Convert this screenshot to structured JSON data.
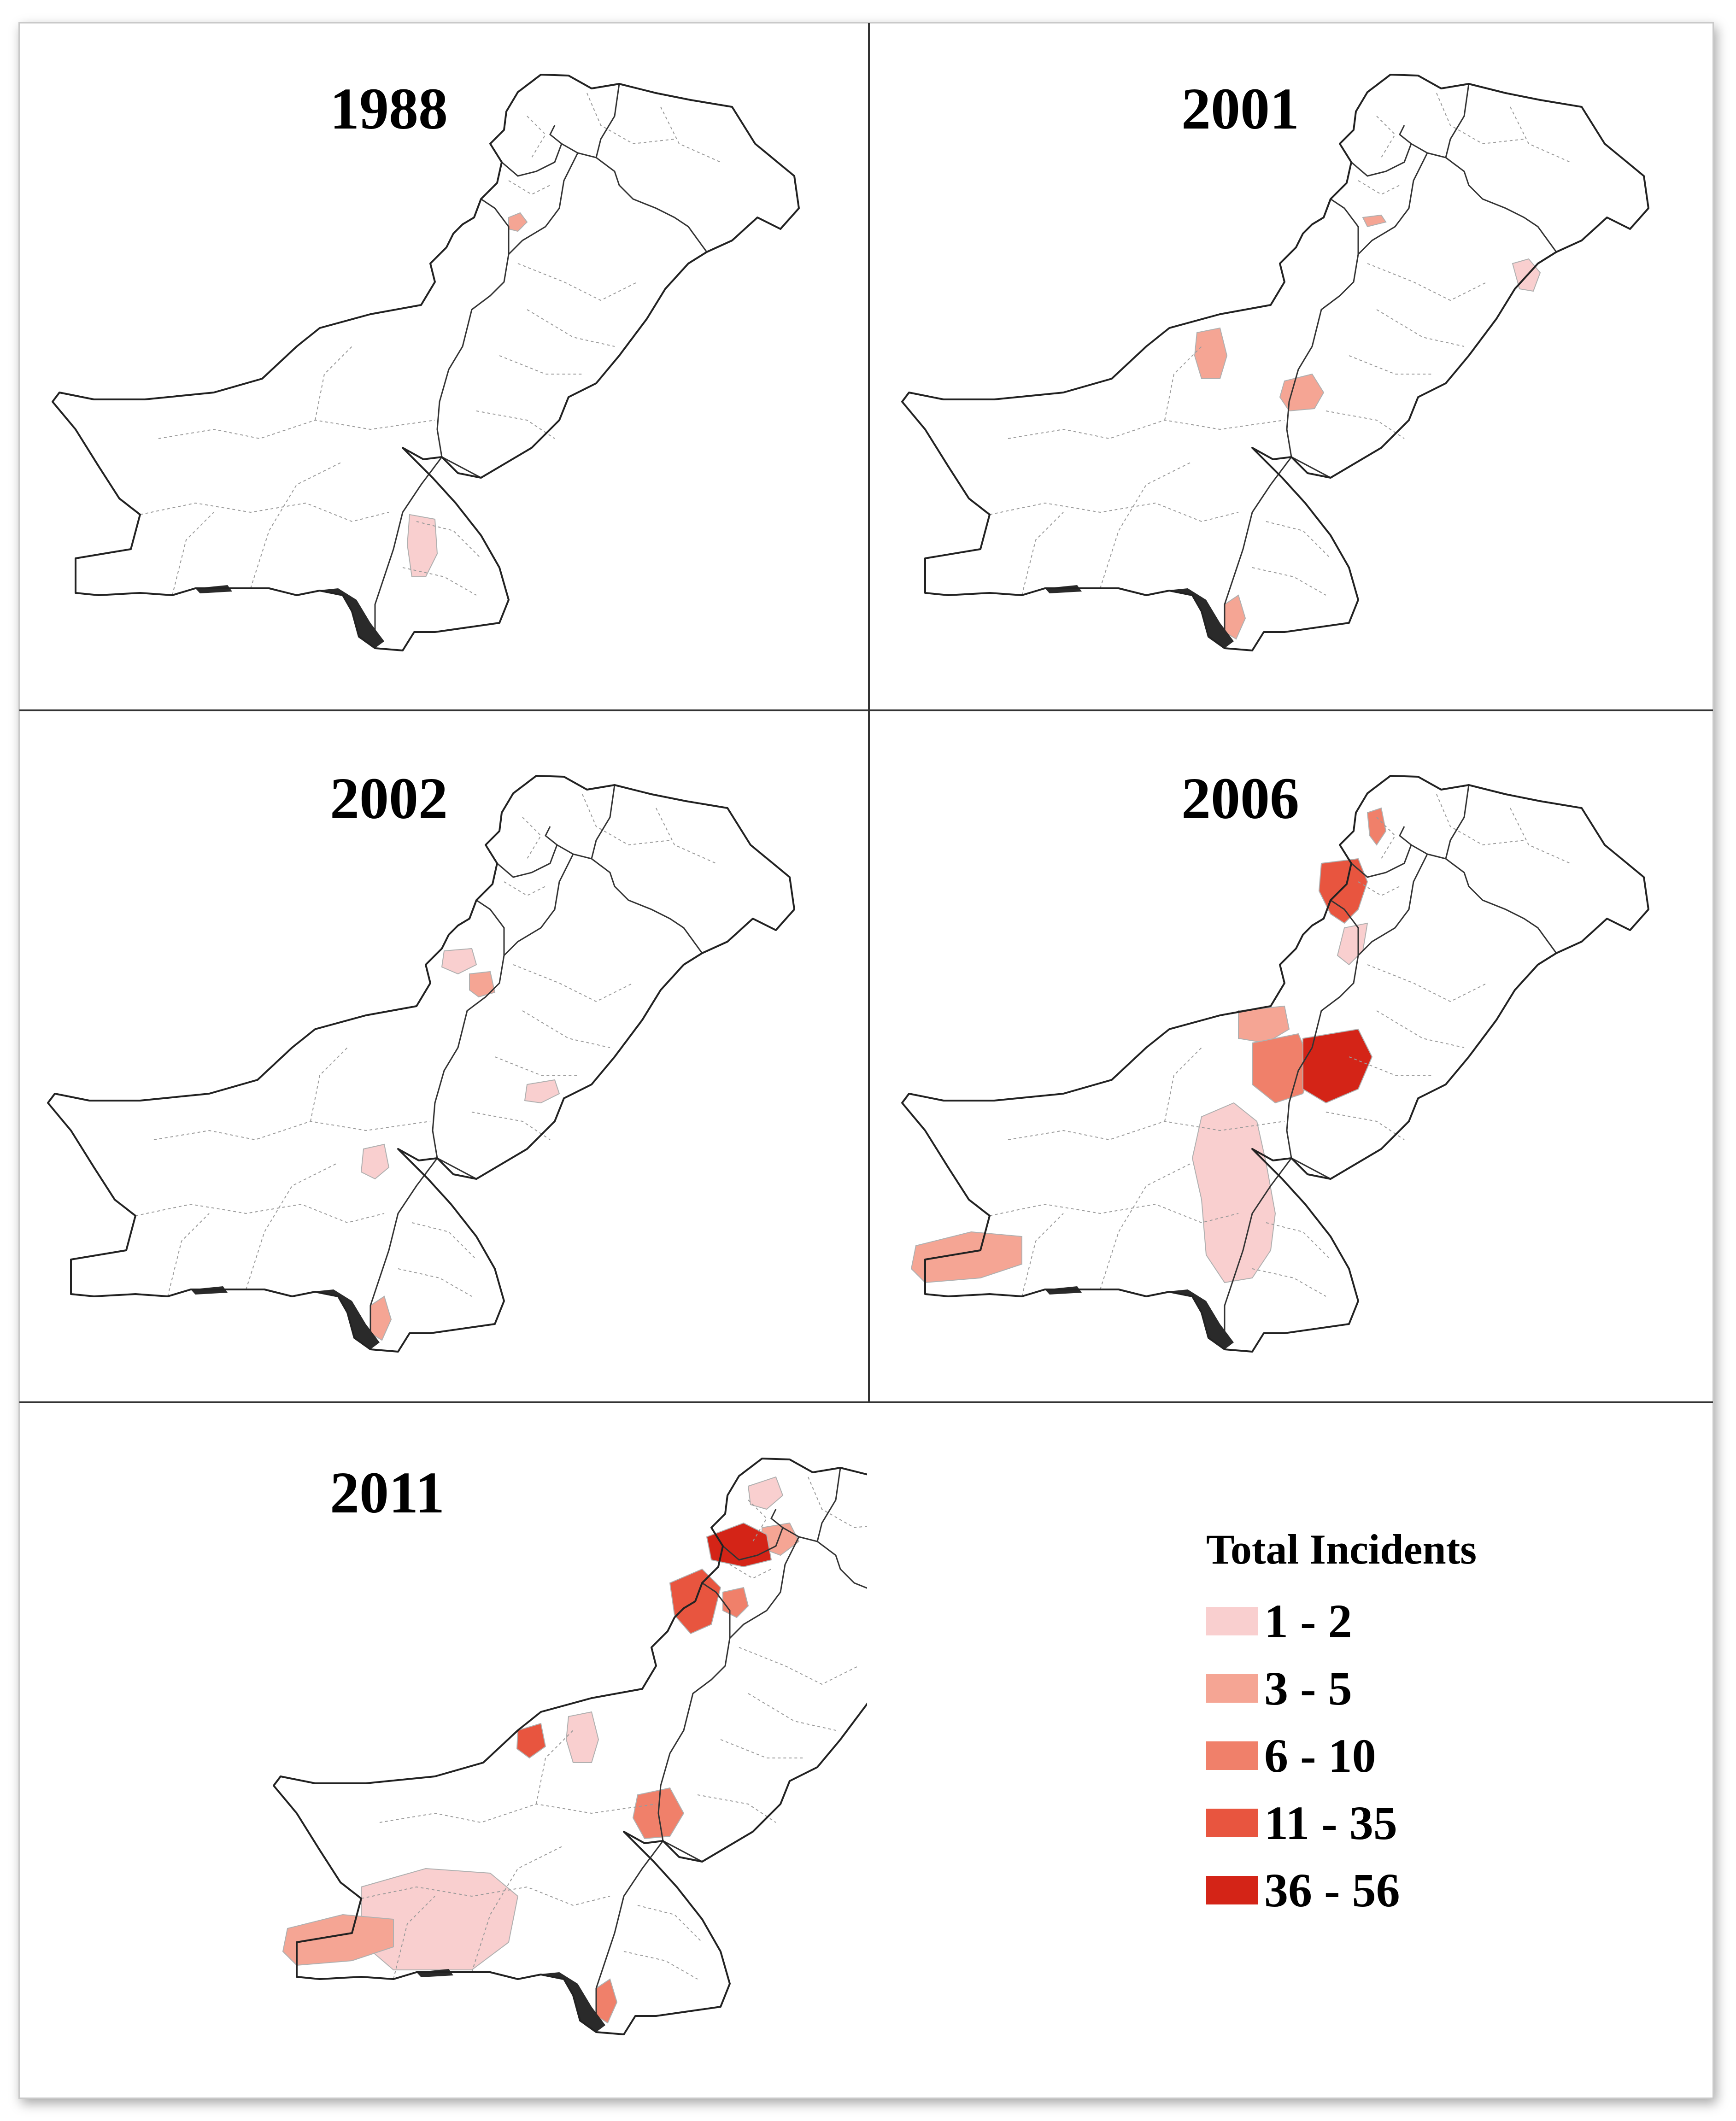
{
  "panels": [
    {
      "year": "1988",
      "shaded": [
        {
          "name": "northwest-spot",
          "level": 1
        },
        {
          "name": "sindh-west",
          "level": 0
        }
      ]
    },
    {
      "year": "2001",
      "shaded": [
        {
          "name": "north-spot",
          "level": 1
        },
        {
          "name": "punjab-northeast",
          "level": 0
        },
        {
          "name": "balochistan-north",
          "level": 1
        },
        {
          "name": "balochistan-east",
          "level": 1
        },
        {
          "name": "karachi",
          "level": 1
        }
      ]
    },
    {
      "year": "2002",
      "shaded": [
        {
          "name": "fata-north",
          "level": 0
        },
        {
          "name": "kpk-south",
          "level": 1
        },
        {
          "name": "punjab-central",
          "level": 0
        },
        {
          "name": "balochistan-southeast",
          "level": 0
        },
        {
          "name": "karachi",
          "level": 1
        }
      ]
    },
    {
      "year": "2006",
      "shaded": [
        {
          "name": "swat-upper",
          "level": 2
        },
        {
          "name": "bajaur",
          "level": 3
        },
        {
          "name": "fata-central",
          "level": 0
        },
        {
          "name": "zhob",
          "level": 1
        },
        {
          "name": "loralai",
          "level": 2
        },
        {
          "name": "dera-bugti",
          "level": 4
        },
        {
          "name": "kalat-belt",
          "level": 0
        },
        {
          "name": "makran",
          "level": 1
        }
      ]
    },
    {
      "year": "2011",
      "shaded": [
        {
          "name": "chitral",
          "level": 0
        },
        {
          "name": "swat",
          "level": 1
        },
        {
          "name": "bajaur-mohmand",
          "level": 4
        },
        {
          "name": "khyber",
          "level": 3
        },
        {
          "name": "kurram",
          "level": 2
        },
        {
          "name": "punjab-northeast",
          "level": 1
        },
        {
          "name": "quetta",
          "level": 3
        },
        {
          "name": "balochistan-north",
          "level": 0
        },
        {
          "name": "sibi",
          "level": 2
        },
        {
          "name": "balochistan-southwest",
          "level": 0
        },
        {
          "name": "makran",
          "level": 1
        },
        {
          "name": "karachi",
          "level": 2
        }
      ]
    }
  ],
  "legend": {
    "title": "Total Incidents",
    "items": [
      {
        "label": "1 - 2",
        "color": "#f9cfcf"
      },
      {
        "label": "3 - 5",
        "color": "#f5a594"
      },
      {
        "label": "6 - 10",
        "color": "#f0806a"
      },
      {
        "label": "11 - 35",
        "color": "#e8553f"
      },
      {
        "label": "36 - 56",
        "color": "#d42417"
      }
    ]
  }
}
